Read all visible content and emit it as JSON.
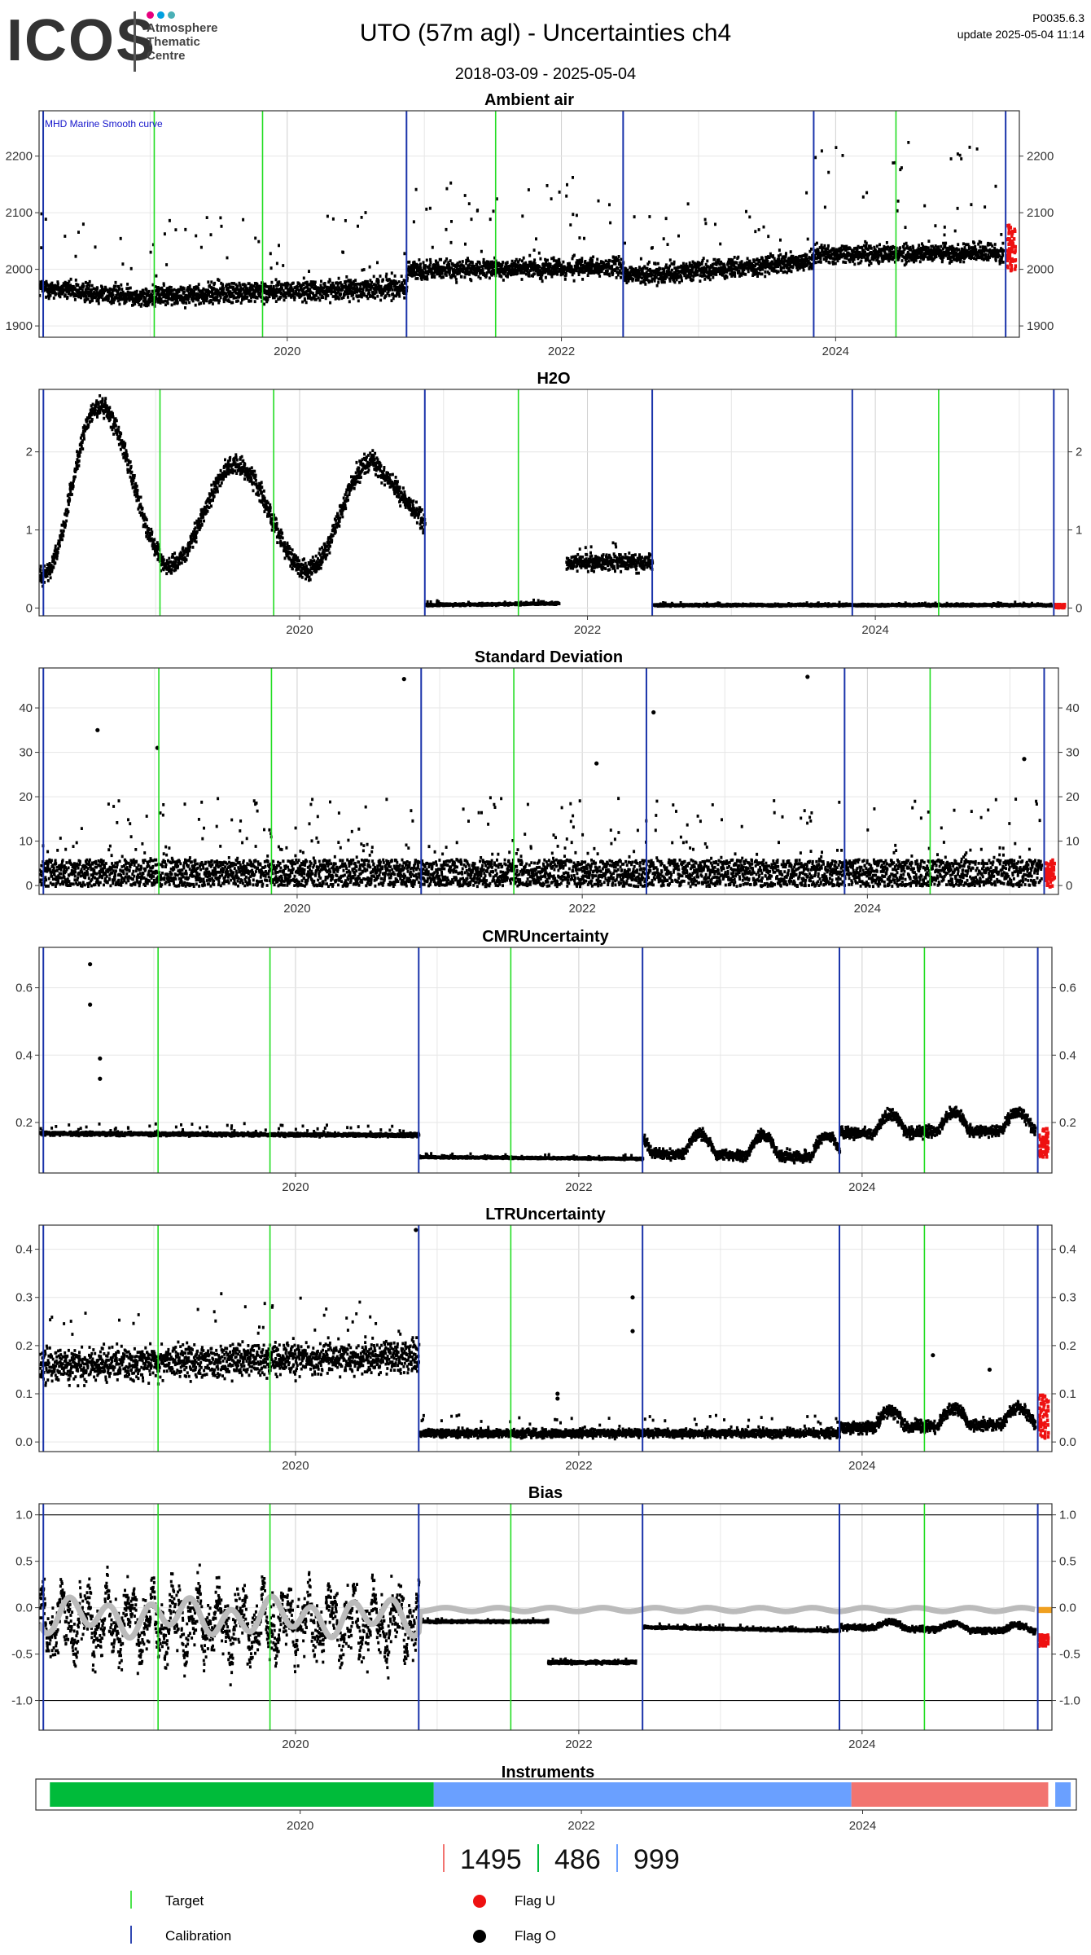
{
  "header": {
    "logo_text": "ICOS",
    "logo_subtitle": [
      "Atmosphere",
      "Thematic",
      "Centre"
    ],
    "logo_dot_colors": [
      "#e6007e",
      "#00a0e0",
      "#4ab0b6"
    ],
    "title": "UTO  (57m agl) - Uncertainties ch4",
    "date_range": "2018-03-09 - 2025-05-04",
    "version": "P0035.6.3",
    "update": "update  2025-05-04 11:14"
  },
  "colors": {
    "target": "#22dd22",
    "calibration": "#1a33aa",
    "flag_u": "#ee1111",
    "flag_o": "#000000",
    "smooth": "#bbbbbb",
    "bias_flag_orange": "#f0a020",
    "grid": "#e6e6e6",
    "grid_major": "#cfcfcf"
  },
  "x_axis": {
    "start_year": 2018.19,
    "end_year": 2025.34,
    "tick_years": [
      2020,
      2022,
      2024
    ],
    "tick_labels": [
      "2020",
      "2022",
      "2024"
    ],
    "calibration_years": [
      2018.22,
      2020.87,
      2022.45,
      2023.84,
      2025.24
    ],
    "target_years": [
      2019.03,
      2019.82,
      2021.52,
      2024.44
    ]
  },
  "chart_data": [
    {
      "type": "scatter",
      "id": "ambient",
      "title": "Ambient air",
      "annotation": "MHD Marine Smooth curve",
      "ylim": [
        1880,
        2280
      ],
      "yticks": [
        1900,
        2000,
        2100,
        2200
      ],
      "ytick_labels": [
        "1900",
        "2000",
        "2100",
        "2200"
      ],
      "segments": [
        {
          "x0": 2018.19,
          "x1": 2019.0,
          "base": [
            1970,
            1950
          ],
          "spread": 40,
          "spike": 160
        },
        {
          "x0": 2019.0,
          "x1": 2020.87,
          "base": [
            1955,
            1970
          ],
          "spread": 45,
          "spike": 150
        },
        {
          "x0": 2020.87,
          "x1": 2022.45,
          "base": [
            2000,
            2005
          ],
          "spread": 40,
          "spike": 160
        },
        {
          "x0": 2022.45,
          "x1": 2023.84,
          "base": [
            1990,
            2015
          ],
          "spread": 40,
          "spike": 130
        },
        {
          "x0": 2023.84,
          "x1": 2025.22,
          "base": [
            2030,
            2030
          ],
          "spread": 40,
          "spike": 200
        }
      ],
      "flag_u_range": [
        2025.24,
        2025.31,
        2000,
        2080
      ]
    },
    {
      "type": "scatter",
      "id": "h2o",
      "title": "H2O",
      "ylim": [
        -0.1,
        2.8
      ],
      "yticks": [
        0,
        1,
        2
      ],
      "ytick_labels": [
        "0",
        "1",
        "2"
      ],
      "segments": [
        {
          "x0": 2018.19,
          "x1": 2020.87,
          "kind": "seasonal",
          "peaks": [
            [
              2018.6,
              2.6
            ],
            [
              2019.55,
              1.85
            ],
            [
              2020.5,
              1.9
            ]
          ],
          "troughs": [
            [
              2018.22,
              0.45
            ],
            [
              2019.1,
              0.55
            ],
            [
              2020.05,
              0.5
            ]
          ],
          "spread": 0.3
        },
        {
          "x0": 2020.87,
          "x1": 2021.8,
          "base": [
            0.05,
            0.07
          ],
          "spread": 0.03,
          "spike": 0.05
        },
        {
          "x0": 2021.85,
          "x1": 2022.45,
          "base": [
            0.6,
            0.6
          ],
          "spread": 0.25,
          "spike": 0.3
        },
        {
          "x0": 2022.45,
          "x1": 2025.22,
          "base": [
            0.05,
            0.05
          ],
          "spread": 0.03,
          "spike": 0.03
        }
      ],
      "flag_u_range": [
        2025.24,
        2025.31,
        0.02,
        0.06
      ]
    },
    {
      "type": "scatter",
      "id": "stddev",
      "title": "Standard Deviation",
      "ylim": [
        -2,
        49
      ],
      "yticks": [
        0,
        10,
        20,
        30,
        40
      ],
      "ytick_labels": [
        "0",
        "10",
        "20",
        "30",
        "40"
      ],
      "segments": [
        {
          "x0": 2018.19,
          "x1": 2025.22,
          "base": [
            1,
            1
          ],
          "spread": 4,
          "spike": 20,
          "kind": "noise"
        }
      ],
      "outliers": [
        [
          2020.75,
          46.5
        ],
        [
          2023.58,
          47
        ],
        [
          2022.5,
          39
        ],
        [
          2018.6,
          35
        ],
        [
          2019.02,
          31
        ],
        [
          2022.1,
          27.5
        ],
        [
          2025.1,
          28.5
        ]
      ],
      "flag_u_range": [
        2025.24,
        2025.31,
        0,
        6
      ]
    },
    {
      "type": "scatter",
      "id": "cmr",
      "title": "CMRUncertainty",
      "ylim": [
        0.05,
        0.72
      ],
      "yticks": [
        0.2,
        0.4,
        0.6
      ],
      "ytick_labels": [
        "0.2",
        "0.4",
        "0.6"
      ],
      "segments": [
        {
          "x0": 2018.19,
          "x1": 2020.87,
          "base": [
            0.17,
            0.165
          ],
          "spread": 0.012,
          "spike": 0.03
        },
        {
          "x0": 2020.87,
          "x1": 2022.45,
          "base": [
            0.1,
            0.095
          ],
          "spread": 0.006,
          "spike": 0.01
        },
        {
          "x0": 2022.45,
          "x1": 2023.84,
          "base": [
            0.11,
            0.1
          ],
          "spread": 0.04,
          "spike": 0.09,
          "kind": "bumpy"
        },
        {
          "x0": 2023.84,
          "x1": 2025.22,
          "base": [
            0.17,
            0.18
          ],
          "spread": 0.04,
          "spike": 0.08,
          "kind": "bumpy"
        }
      ],
      "outliers": [
        [
          2018.55,
          0.67
        ],
        [
          2018.55,
          0.55
        ],
        [
          2018.62,
          0.39
        ],
        [
          2018.62,
          0.33
        ]
      ],
      "flag_u_range": [
        2025.24,
        2025.31,
        0.1,
        0.19
      ]
    },
    {
      "type": "scatter",
      "id": "ltr",
      "title": "LTRUncertainty",
      "ylim": [
        -0.02,
        0.45
      ],
      "yticks": [
        0.0,
        0.1,
        0.2,
        0.3,
        0.4
      ],
      "ytick_labels": [
        "0.0",
        "0.1",
        "0.2",
        "0.3",
        "0.4"
      ],
      "segments": [
        {
          "x0": 2018.19,
          "x1": 2020.87,
          "base": [
            0.16,
            0.18
          ],
          "spread": 0.08,
          "spike": 0.12
        },
        {
          "x0": 2020.87,
          "x1": 2023.84,
          "base": [
            0.02,
            0.02
          ],
          "spread": 0.02,
          "spike": 0.04
        },
        {
          "x0": 2023.84,
          "x1": 2025.22,
          "base": [
            0.03,
            0.04
          ],
          "spread": 0.03,
          "spike": 0.05,
          "kind": "bumpy"
        }
      ],
      "outliers": [
        [
          2022.38,
          0.3
        ],
        [
          2022.38,
          0.23
        ],
        [
          2024.5,
          0.18
        ],
        [
          2021.85,
          0.1
        ],
        [
          2021.85,
          0.09
        ],
        [
          2024.9,
          0.15
        ],
        [
          2020.85,
          0.44
        ]
      ],
      "flag_u_range": [
        2025.24,
        2025.31,
        0.01,
        0.1
      ]
    },
    {
      "type": "scatter",
      "id": "bias",
      "title": "Bias",
      "ylim": [
        -1.32,
        1.12
      ],
      "yticks": [
        -1.0,
        -0.5,
        0.0,
        0.5,
        1.0
      ],
      "ytick_labels": [
        "-1.0",
        "-0.5",
        "0.0",
        "0.5",
        "1.0"
      ],
      "hlines": [
        1.0,
        -1.0
      ],
      "segments": [
        {
          "x0": 2018.19,
          "x1": 2020.87,
          "base": [
            -0.15,
            -0.15
          ],
          "spread": 0.4,
          "spike": 0.35,
          "kind": "volatile"
        },
        {
          "x0": 2020.87,
          "x1": 2021.78,
          "base": [
            -0.14,
            -0.14
          ],
          "spread": 0.025,
          "spike": 0.03
        },
        {
          "x0": 2021.78,
          "x1": 2022.4,
          "base": [
            -0.58,
            -0.58
          ],
          "spread": 0.035,
          "spike": 0.04
        },
        {
          "x0": 2022.45,
          "x1": 2023.84,
          "base": [
            -0.2,
            -0.24
          ],
          "spread": 0.025,
          "spike": 0.04
        },
        {
          "x0": 2023.84,
          "x1": 2025.22,
          "base": [
            -0.2,
            -0.25
          ],
          "spread": 0.07,
          "spike": 0.1,
          "kind": "bumpy"
        }
      ],
      "smooth": {
        "x0": 2018.19,
        "x1": 2025.22,
        "pre_level": -0.1,
        "pre_amp": 0.15,
        "post_level": -0.02,
        "post_amp": 0.02
      },
      "flag_u_range": [
        2025.24,
        2025.31,
        -0.4,
        -0.28
      ],
      "orange_range": [
        2025.24,
        2025.34,
        -0.04,
        -0.01
      ]
    }
  ],
  "instruments": {
    "title": "Instruments",
    "bars": [
      {
        "x0": 2018.22,
        "x1": 2020.95,
        "color": "#00bb3a"
      },
      {
        "x0": 2020.95,
        "x1": 2023.92,
        "color": "#6aa0ff"
      },
      {
        "x0": 2023.92,
        "x1": 2025.32,
        "color": "#f27470"
      },
      {
        "x0": 2025.37,
        "x1": 2025.48,
        "color": "#6aa0ff"
      }
    ],
    "legend": [
      {
        "label": "1495",
        "color": "#f27470"
      },
      {
        "label": "486",
        "color": "#00bb3a"
      },
      {
        "label": "999",
        "color": "#6aa0ff"
      }
    ]
  },
  "legend": {
    "target": "Target",
    "calibration": "Calibration",
    "flag_u": "Flag U",
    "flag_o": "Flag O"
  }
}
